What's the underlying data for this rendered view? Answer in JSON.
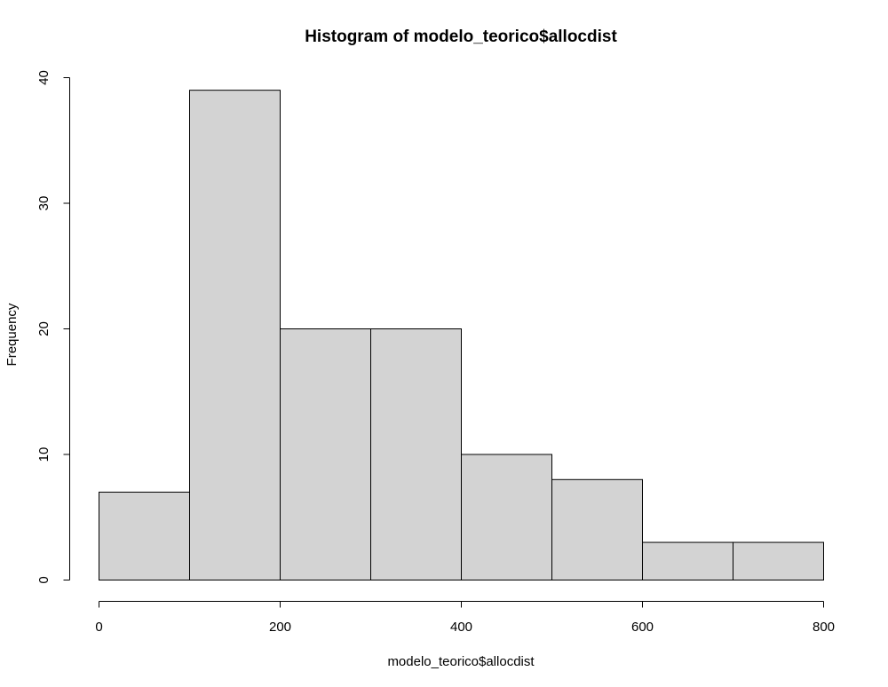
{
  "chart_data": {
    "type": "bar",
    "title": "Histogram of modelo_teorico$allocdist",
    "xlabel": "modelo_teorico$allocdist",
    "ylabel": "Frequency",
    "bin_edges": [
      0,
      100,
      200,
      300,
      400,
      500,
      600,
      700,
      800
    ],
    "values": [
      7,
      39,
      20,
      20,
      10,
      8,
      3,
      3
    ],
    "xlim": [
      0,
      800
    ],
    "ylim": [
      0,
      40
    ],
    "x_ticks": [
      0,
      200,
      400,
      600,
      800
    ],
    "y_ticks": [
      0,
      10,
      20,
      30,
      40
    ],
    "bar_color": "#d3d3d3",
    "grid": false
  }
}
